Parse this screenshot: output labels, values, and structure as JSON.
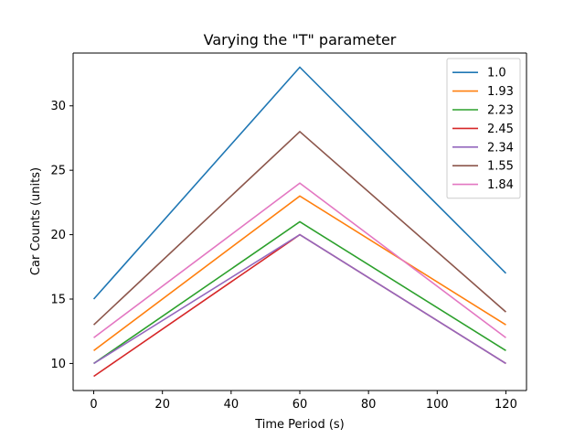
{
  "chart_data": {
    "type": "line",
    "title": "Varying the \"T\" parameter",
    "xlabel": "Time Period (s)",
    "ylabel": "Car Counts (units)",
    "x": [
      0,
      60,
      120
    ],
    "xlim": [
      -6,
      126
    ],
    "ylim": [
      7.9,
      34.1
    ],
    "xticks": [
      0,
      20,
      40,
      60,
      80,
      100,
      120
    ],
    "yticks": [
      10,
      15,
      20,
      25,
      30
    ],
    "grid": false,
    "legend_position": "top-right",
    "series": [
      {
        "name": "1.0",
        "color": "#1f77b4",
        "values": [
          15,
          33,
          17
        ]
      },
      {
        "name": "1.93",
        "color": "#ff7f0e",
        "values": [
          11,
          23,
          13
        ]
      },
      {
        "name": "2.23",
        "color": "#2ca02c",
        "values": [
          10,
          21,
          11
        ]
      },
      {
        "name": "2.45",
        "color": "#d62728",
        "values": [
          9,
          20,
          10
        ]
      },
      {
        "name": "2.34",
        "color": "#9467bd",
        "values": [
          10,
          20,
          10
        ]
      },
      {
        "name": "1.55",
        "color": "#8c564b",
        "values": [
          13,
          28,
          14
        ]
      },
      {
        "name": "1.84",
        "color": "#e377c2",
        "values": [
          12,
          24,
          12
        ]
      }
    ]
  }
}
